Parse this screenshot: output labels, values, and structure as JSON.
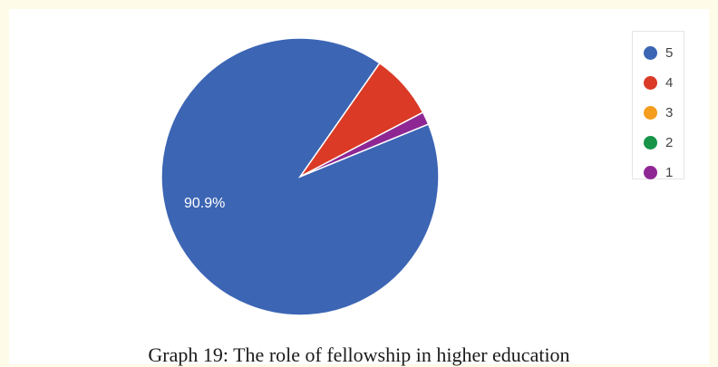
{
  "chart_data": {
    "type": "pie",
    "categories": [
      "5",
      "4",
      "3",
      "2",
      "1"
    ],
    "values": [
      90.9,
      7.6,
      0,
      0,
      1.5
    ],
    "colors": [
      "#3c65b4",
      "#da3a26",
      "#f59d1e",
      "#179447",
      "#8e2794"
    ],
    "data_labels": [
      "90.9%",
      "",
      "",
      "",
      ""
    ],
    "legend_position": "top-right",
    "start_angle_deg": 90,
    "direction": "clockwise"
  },
  "caption": "Graph 19: The role of fellowship in higher education"
}
